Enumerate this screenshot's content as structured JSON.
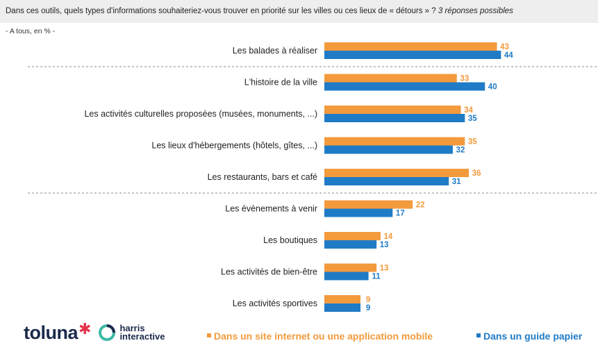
{
  "header": {
    "question_part1": "Dans ces outils, quels types d'informations souhaiteriez-vous trouver en priorité sur les villes ou ces lieux de « détours » ?",
    "question_part2": "3 réponses possibles"
  },
  "subtitle": "- A tous, en % -",
  "logos": {
    "toluna": "toluna",
    "harris_line1": "harris",
    "harris_line2": "interactive"
  },
  "colors": {
    "web": "#f39a3c",
    "paper": "#1f7bc6",
    "divider": "#888888"
  },
  "chart_data": {
    "type": "bar",
    "orientation": "horizontal",
    "categories": [
      "Les balades à réaliser",
      "L'histoire de la ville",
      "Les activités culturelles proposées (musées, monuments, ...)",
      "Les lieux d'hébergements (hôtels, gîtes, ...)",
      "Les restaurants, bars et café",
      "Les évènements à venir",
      "Les boutiques",
      "Les activités de bien-être",
      "Les activités sportives"
    ],
    "series": [
      {
        "name": "Dans un site internet ou une application mobile",
        "values": [
          43,
          33,
          34,
          35,
          36,
          22,
          14,
          13,
          9
        ]
      },
      {
        "name": "Dans un guide papier",
        "values": [
          44,
          40,
          35,
          32,
          31,
          17,
          13,
          11,
          9
        ]
      }
    ],
    "dividers_after_index": [
      0,
      4
    ],
    "data_labels": true,
    "legend_position": "bottom-right",
    "grid": false
  }
}
